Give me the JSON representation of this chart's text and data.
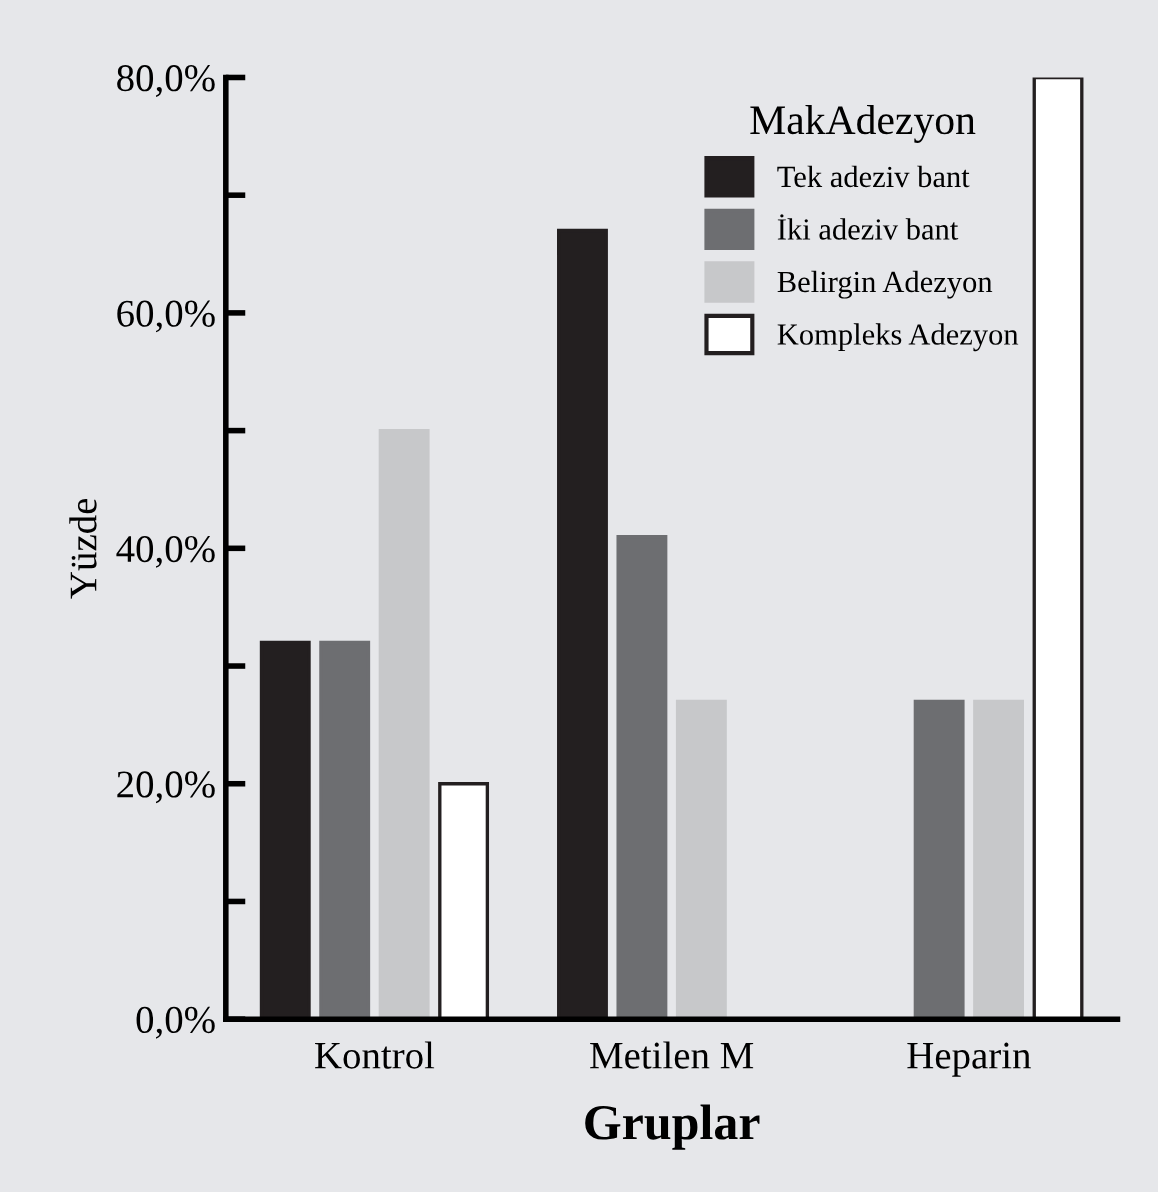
{
  "chart_data": {
    "type": "bar",
    "xlabel": "Gruplar",
    "ylabel": "Yüzde",
    "legend_title": "MakAdezyon",
    "categories": [
      "Kontrol",
      "Metilen M",
      "Heparin"
    ],
    "series": [
      {
        "name": "Tek adeziv bant",
        "color": "#231f20",
        "values": [
          32,
          67,
          null
        ]
      },
      {
        "name": "İki adeziv bant",
        "color": "#6d6e71",
        "values": [
          32,
          41,
          27
        ]
      },
      {
        "name": "Belirgin Adezyon",
        "color": "#c7c8ca",
        "values": [
          50,
          27,
          27
        ]
      },
      {
        "name": "Kompleks Adezyon",
        "color": "#ffffff",
        "values": [
          20,
          null,
          80
        ]
      }
    ],
    "ylim": [
      0,
      80
    ],
    "yticks": [
      {
        "value": 0,
        "label": "0,0%"
      },
      {
        "value": 10,
        "label": null
      },
      {
        "value": 20,
        "label": "20,0%"
      },
      {
        "value": 30,
        "label": null
      },
      {
        "value": 40,
        "label": "40,0%"
      },
      {
        "value": 50,
        "label": null
      },
      {
        "value": 60,
        "label": "60,0%"
      },
      {
        "value": 70,
        "label": null
      },
      {
        "value": 80,
        "label": "80,0%"
      }
    ],
    "grid": false,
    "legend": "top right"
  }
}
